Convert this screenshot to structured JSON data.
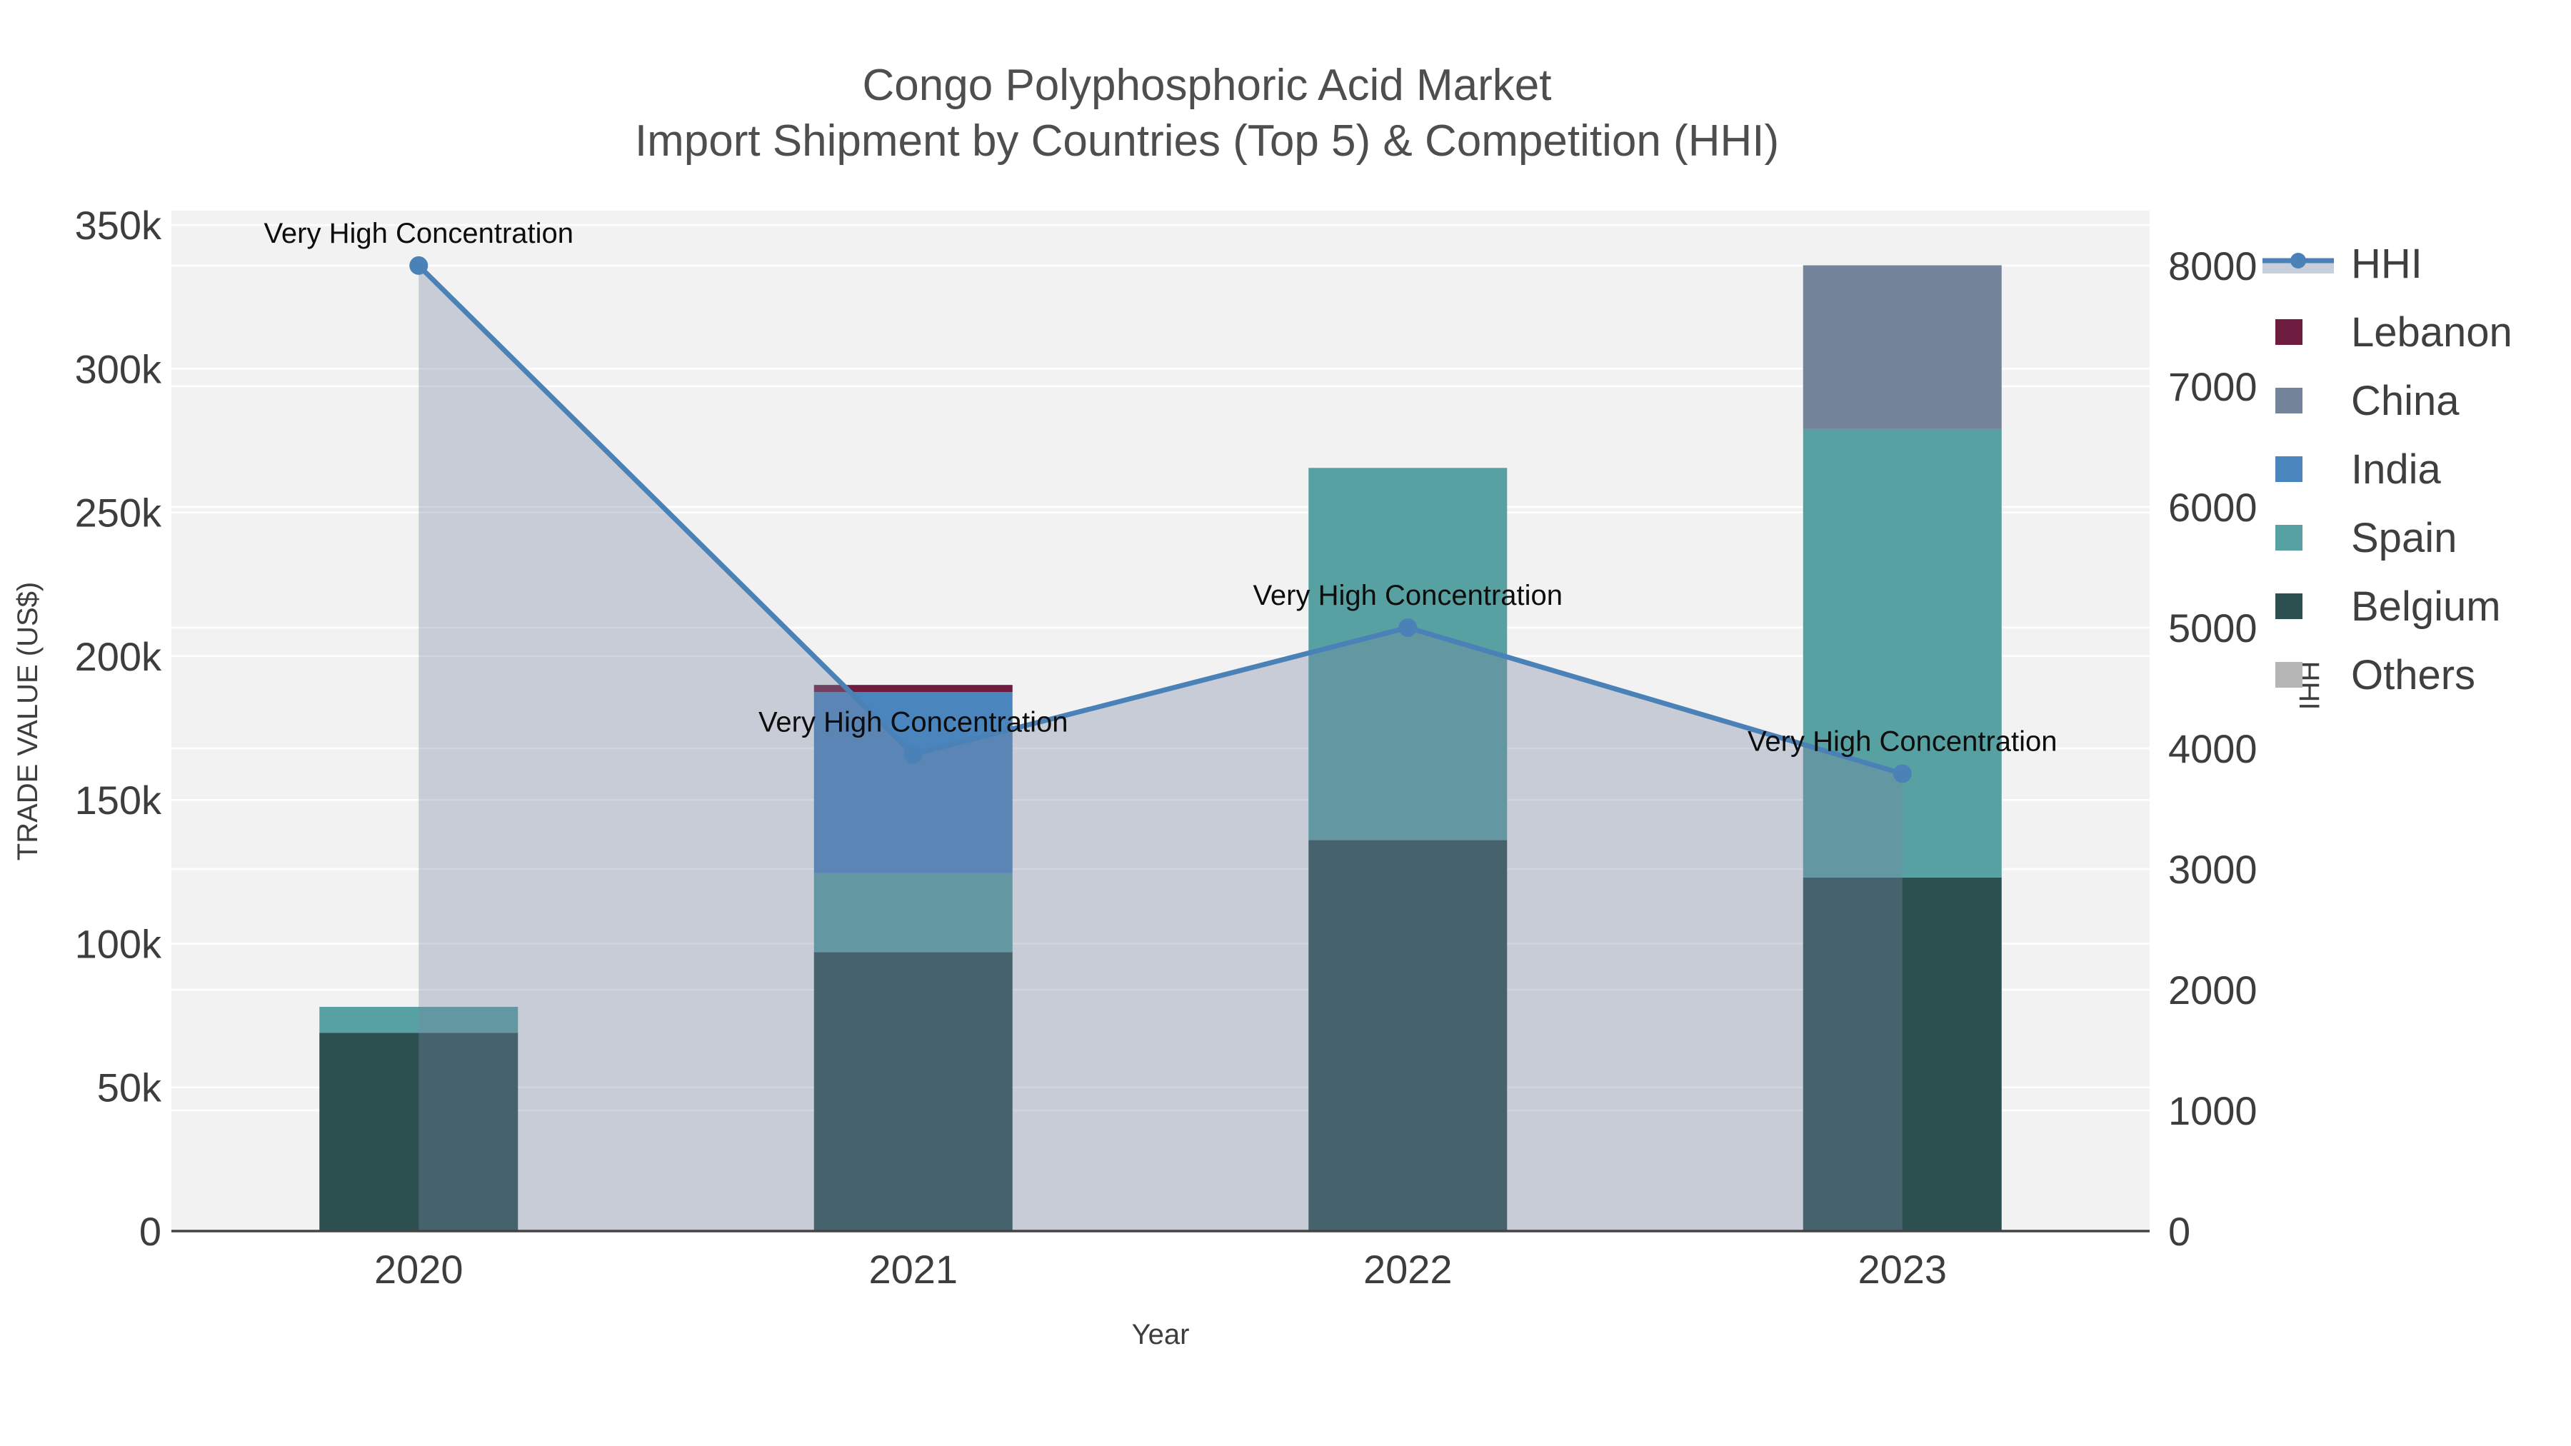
{
  "figure": {
    "title_line1": "Congo Polyphosphoric Acid Market",
    "title_line2": "Import Shipment by Countries (Top 5) & Competition (HHI)",
    "x_axis_title": "Year",
    "y_left_title": "TRADE VALUE (US$)",
    "y_right_title": "HHI",
    "background_color": "#ffffff",
    "plot_background_color": "#f2f2f2",
    "gridline_color": "#ffffff",
    "axis_line_color": "#444444"
  },
  "chart_data": {
    "type": "bar+line",
    "title": "Congo Polyphosphoric Acid Market — Import Shipment by Countries (Top 5) & Competition (HHI)",
    "categories": [
      "2020",
      "2021",
      "2022",
      "2023"
    ],
    "xlabel": "Year",
    "ylabel_left": "TRADE VALUE (US$)",
    "ylabel_right": "HHI",
    "stack_note": "bar_series listed bottom-to-top of stack; values in US$",
    "bar_series": [
      {
        "name": "Belgium",
        "color": "#2c4f50",
        "values": [
          69000,
          97000,
          136000,
          123000
        ]
      },
      {
        "name": "Spain",
        "color": "#58a1a3",
        "values": [
          9000,
          27500,
          129500,
          156000
        ]
      },
      {
        "name": "India",
        "color": "#4a85bd",
        "values": [
          0,
          63000,
          0,
          0
        ]
      },
      {
        "name": "China",
        "color": "#74849b",
        "values": [
          0,
          0,
          0,
          57000
        ]
      },
      {
        "name": "Lebanon",
        "color": "#6e1d40",
        "values": [
          0,
          2500,
          0,
          0
        ]
      },
      {
        "name": "Others",
        "color": "#b5b5b5",
        "values": [
          0,
          0,
          0,
          0
        ]
      }
    ],
    "line_series": {
      "name": "HHI",
      "color": "#4a82b8",
      "fill_color": "rgba(120,134,163,0.35)",
      "values": [
        8000,
        3950,
        5000,
        3790
      ]
    },
    "annotations": [
      {
        "text": "Very High Concentration",
        "category": "2020",
        "hhi": 8000
      },
      {
        "text": "Very High Concentration",
        "category": "2021",
        "hhi": 3950
      },
      {
        "text": "Very High Concentration",
        "category": "2022",
        "hhi": 5000
      },
      {
        "text": "Very High Concentration",
        "category": "2023",
        "hhi": 3790
      }
    ],
    "y_left_axis": {
      "tick_labels": [
        "0",
        "50k",
        "100k",
        "150k",
        "200k",
        "250k",
        "300k",
        "350k"
      ],
      "tick_values": [
        0,
        50000,
        100000,
        150000,
        200000,
        250000,
        300000,
        350000
      ],
      "range_top": 355000
    },
    "y_right_axis": {
      "tick_labels": [
        "0",
        "1000",
        "2000",
        "3000",
        "4000",
        "5000",
        "6000",
        "7000",
        "8000"
      ],
      "tick_values": [
        0,
        1000,
        2000,
        3000,
        4000,
        5000,
        6000,
        7000,
        8000
      ],
      "range_top": 8455
    },
    "grid": true,
    "legend_position": "right",
    "legend_items": [
      "HHI",
      "Lebanon",
      "China",
      "India",
      "Spain",
      "Belgium",
      "Others"
    ]
  }
}
